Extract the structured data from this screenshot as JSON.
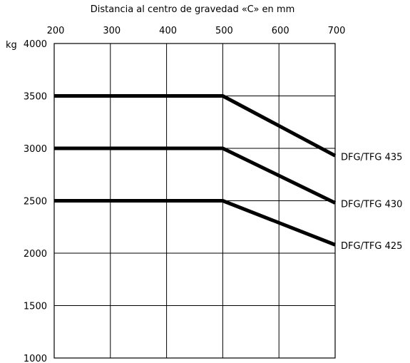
{
  "chart_data": {
    "type": "line",
    "title": "",
    "xlabel": "Distancia al centro de gravedad «C» en mm",
    "ylabel": "kg",
    "xlim": [
      200,
      700
    ],
    "ylim": [
      1000,
      4000
    ],
    "x_ticks": [
      200,
      300,
      400,
      500,
      600,
      700
    ],
    "y_ticks": [
      1000,
      1500,
      2000,
      2500,
      3000,
      3500,
      4000
    ],
    "x_tick_labels": [
      "200",
      "300",
      "400",
      "500",
      "600",
      "700"
    ],
    "y_tick_labels": [
      "1000",
      "1500",
      "2000",
      "2500",
      "3000",
      "3500",
      "4000"
    ],
    "x_axis_position": "top",
    "grid": true,
    "legend": "none",
    "series": [
      {
        "name": "DFG/TFG 435",
        "x": [
          200,
          500,
          700
        ],
        "y": [
          3500,
          3500,
          2930
        ]
      },
      {
        "name": "DFG/TFG 430",
        "x": [
          200,
          500,
          700
        ],
        "y": [
          3000,
          3000,
          2480
        ]
      },
      {
        "name": "DFG/TFG 425",
        "x": [
          200,
          500,
          700
        ],
        "y": [
          2500,
          2500,
          2080
        ]
      }
    ],
    "line_color": "#000000"
  }
}
